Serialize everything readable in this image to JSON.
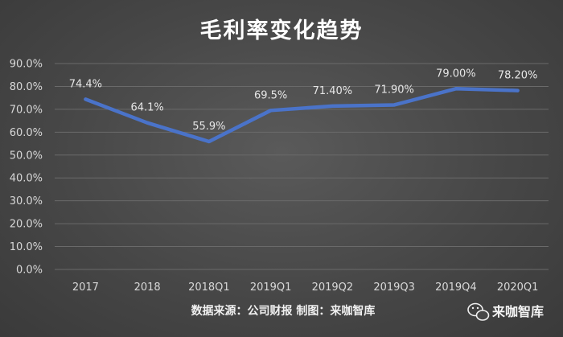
{
  "chart_data": {
    "type": "line",
    "title": "毛利率变化趋势",
    "categories": [
      "2017",
      "2018",
      "2018Q1",
      "2019Q1",
      "2019Q2",
      "2019Q3",
      "2019Q4",
      "2020Q1"
    ],
    "series": [
      {
        "values": [
          74.4,
          64.1,
          55.9,
          69.5,
          71.4,
          71.9,
          79.0,
          78.2
        ],
        "labels": [
          "74.4%",
          "64.1%",
          "55.9%",
          "69.5%",
          "71.40%",
          "71.90%",
          "79.00%",
          "78.20%"
        ]
      }
    ],
    "ylim": [
      0,
      90
    ],
    "yticks": [
      "0.0%",
      "10.0%",
      "20.0%",
      "30.0%",
      "40.0%",
      "50.0%",
      "60.0%",
      "70.0%",
      "80.0%",
      "90.0%"
    ],
    "grid": true,
    "legend": "none"
  },
  "source": "数据来源：公司财报 制图：来咖智库",
  "brand": "来咖智库",
  "colors": {
    "line": "#4a73c9",
    "grid": "#6a6a6a",
    "background": "#474747"
  },
  "icons": {
    "brand": "wechat-icon"
  }
}
